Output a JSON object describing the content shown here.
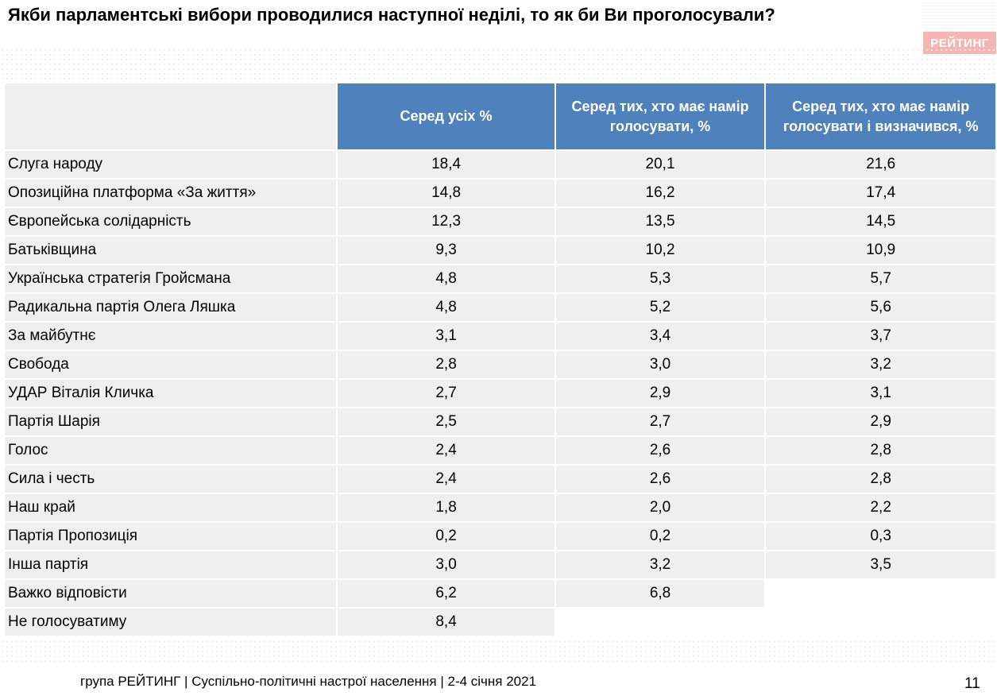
{
  "title": "Якби парламентські вибори проводилися наступної неділі, то як би Ви проголосували?",
  "logo": "РЕЙТИНГ",
  "table": {
    "headers": [
      "Серед усіх %",
      "Серед тих, хто має намір голосувати, %",
      "Серед тих, хто має намір голосувати і визначився, %"
    ],
    "rows": [
      {
        "party": "Слуга народу",
        "v1": "18,4",
        "v2": "20,1",
        "v3": "21,6"
      },
      {
        "party": "Опозиційна платформа «За життя»",
        "v1": "14,8",
        "v2": "16,2",
        "v3": "17,4"
      },
      {
        "party": "Європейська солідарність",
        "v1": "12,3",
        "v2": "13,5",
        "v3": "14,5"
      },
      {
        "party": "Батьківщина",
        "v1": "9,3",
        "v2": "10,2",
        "v3": "10,9"
      },
      {
        "party": "Українська стратегія Гройсмана",
        "v1": "4,8",
        "v2": "5,3",
        "v3": "5,7"
      },
      {
        "party": "Радикальна партія Олега Ляшка",
        "v1": "4,8",
        "v2": "5,2",
        "v3": "5,6"
      },
      {
        "party": "За майбутнє",
        "v1": "3,1",
        "v2": "3,4",
        "v3": "3,7"
      },
      {
        "party": "Свобода",
        "v1": "2,8",
        "v2": "3,0",
        "v3": "3,2"
      },
      {
        "party": "УДАР Віталія Кличка",
        "v1": "2,7",
        "v2": "2,9",
        "v3": "3,1"
      },
      {
        "party": "Партія Шарія",
        "v1": "2,5",
        "v2": "2,7",
        "v3": "2,9"
      },
      {
        "party": "Голос",
        "v1": "2,4",
        "v2": "2,6",
        "v3": "2,8"
      },
      {
        "party": "Сила і честь",
        "v1": "2,4",
        "v2": "2,6",
        "v3": "2,8"
      },
      {
        "party": "Наш край",
        "v1": "1,8",
        "v2": "2,0",
        "v3": "2,2"
      },
      {
        "party": "Партія Пропозиція",
        "v1": "0,2",
        "v2": "0,2",
        "v3": "0,3"
      },
      {
        "party": "Інша партія",
        "v1": "3,0",
        "v2": "3,2",
        "v3": "3,5"
      },
      {
        "party": "Важко відповісти",
        "v1": "6,2",
        "v2": "6,8",
        "v3": null
      },
      {
        "party": "Не голосуватиму",
        "v1": "8,4",
        "v2": null,
        "v3": null
      }
    ]
  },
  "footer": "група РЕЙТИНГ | Суспільно-політичні настрої населення  | 2-4 січня 2021",
  "page_number": "11",
  "colors": {
    "header_bg": "#4f81bd",
    "row_bg": "#efefef",
    "logo_bg": "#f4b6b2"
  }
}
